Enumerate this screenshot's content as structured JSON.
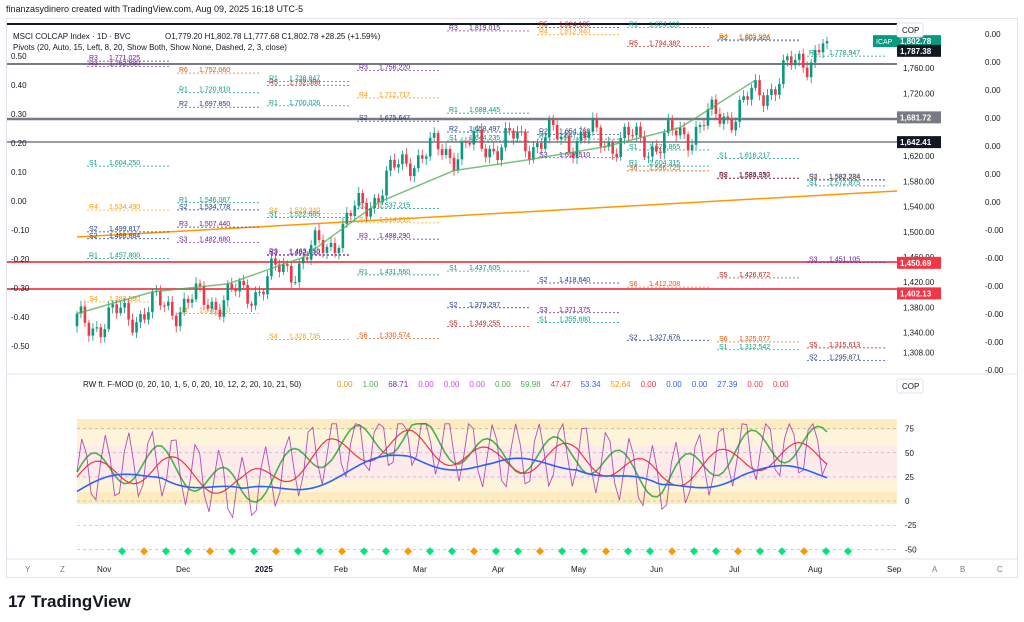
{
  "header": "finanzasydinero created with TradingView.com, Aug 09, 2025 16:18 UTC-5",
  "legend": {
    "symbol": "MSCI COLCAP Index · 1D · BVC",
    "ohlc": "O1,779.20  H1,802.78  L1,777.68  C1,802.78  +28.25 (+1.59%)",
    "pivots": "Pivots (20, Auto, 15, Left, 8, 20, Show Both, Show None, Dashed, 2, 3, close)"
  },
  "currency": "COP",
  "price_axis": {
    "ticks": [
      "1,760.00",
      "1,720.00",
      "1,680.00",
      "1,620.00",
      "1,580.00",
      "1,540.00",
      "1,500.00",
      "1,460.00",
      "1,420.00",
      "1,380.00",
      "1,340.00",
      "1,308.00"
    ],
    "badges": [
      {
        "label": "ICAP",
        "value": "1,802.78",
        "color": "#089981"
      },
      {
        "label": "",
        "value": "1,787.38",
        "color": "#131722"
      },
      {
        "label": "",
        "value": "1,681.72",
        "color": "#787b86"
      },
      {
        "label": "",
        "value": "1,642.41",
        "color": "#131722"
      },
      {
        "label": "",
        "value": "1,450.69",
        "color": "#f23645"
      },
      {
        "label": "",
        "value": "1,402.13",
        "color": "#f23645"
      }
    ]
  },
  "left_scale": [
    "0.50",
    "0.40",
    "0.30",
    "0.20",
    "0.10",
    "0.00",
    "-0.10",
    "-0.20",
    "-0.30",
    "-0.40",
    "-0.50"
  ],
  "right_scale": [
    "0.00",
    "0.00",
    "0.00",
    "0.00",
    "0.00",
    "0.00",
    "0.00",
    "-0.00",
    "-0.00",
    "-0.00",
    "-0.00",
    "-0.00",
    "-0.00"
  ],
  "time_axis": [
    "Nov",
    "Dec",
    "2025",
    "Feb",
    "Mar",
    "Apr",
    "May",
    "Jun",
    "Jul",
    "Aug",
    "Sep"
  ],
  "time_axis_letters": [
    "Y",
    "Z",
    "A",
    "B",
    "C"
  ],
  "pivot_labels": [
    {
      "t": "R3",
      "v": "1,771.025"
    },
    {
      "t": "R6",
      "v": "1,752.060"
    },
    {
      "t": "R5",
      "v": "1,732.388"
    },
    {
      "t": "R4",
      "v": "1,712.717"
    },
    {
      "t": "R2",
      "v": "1,658.497"
    },
    {
      "t": "R1",
      "v": "1,647.194"
    },
    {
      "t": "R1",
      "v": "1,604.315"
    },
    {
      "t": "R2",
      "v": "1,585.350"
    },
    {
      "t": "R4",
      "v": "1,583.320"
    },
    {
      "t": "R4",
      "v": "1,534.490"
    },
    {
      "t": "R3",
      "v": "1,507.440"
    },
    {
      "t": "R3",
      "v": "1,463.850"
    },
    {
      "t": "R1",
      "v": "1,431.560"
    },
    {
      "t": "S2",
      "v": "1,379.297"
    },
    {
      "t": "S1",
      "v": "1,355.680"
    },
    {
      "t": "S2",
      "v": "1,327.676"
    },
    {
      "t": "S1",
      "v": "1,312.542"
    },
    {
      "t": "S2",
      "v": "1,295.871"
    },
    {
      "t": "S4",
      "v": "1,388.580"
    },
    {
      "t": "S4",
      "v": "1,370.170"
    },
    {
      "t": "S4",
      "v": "1,328.735"
    },
    {
      "t": "S6",
      "v": "1,330.574"
    },
    {
      "t": "S5",
      "v": "1,349.255"
    },
    {
      "t": "S3",
      "v": "1,371.375"
    },
    {
      "t": "S6",
      "v": "1,412.208"
    },
    {
      "t": "S5",
      "v": "1,426.672"
    },
    {
      "t": "S3",
      "v": "1,451.105"
    },
    {
      "t": "S2",
      "v": "1,488.884"
    },
    {
      "t": "S2",
      "v": "1,534.778"
    },
    {
      "t": "S4",
      "v": "1,529.340"
    },
    {
      "t": "S4",
      "v": "1,514.210"
    },
    {
      "t": "R3",
      "v": "1,819.015"
    },
    {
      "t": "R4",
      "v": "1,812.940"
    },
    {
      "t": "R1",
      "v": "1,824.110"
    },
    {
      "t": "R2",
      "v": "1,803.326"
    },
    {
      "t": "R1",
      "v": "1,778.947"
    },
    {
      "t": "R3",
      "v": "1,762.580"
    },
    {
      "t": "R1",
      "v": "1,720.810"
    },
    {
      "t": "R1",
      "v": "1,700.026"
    },
    {
      "t": "S2",
      "v": "1,675.647"
    },
    {
      "t": "S1",
      "v": "1,644.235"
    },
    {
      "t": "S3",
      "v": "1,617.510"
    },
    {
      "t": "S6",
      "v": "1,596.725"
    },
    {
      "t": "S5",
      "v": "1,584.537"
    },
    {
      "t": "S2",
      "v": "1,582.284"
    },
    {
      "t": "S1",
      "v": "1,604.250"
    },
    {
      "t": "R2",
      "v": "1,697.850"
    },
    {
      "t": "R1",
      "v": "1,738.847"
    },
    {
      "t": "R3",
      "v": "1,756.220"
    },
    {
      "t": "R4",
      "v": "1,832.370"
    },
    {
      "t": "R5",
      "v": "1,824.185"
    },
    {
      "t": "R5",
      "v": "1,794.382"
    },
    {
      "t": "R4",
      "v": "1,805.604"
    },
    {
      "t": "S1",
      "v": "1,572.875"
    },
    {
      "t": "S2",
      "v": "1,499.817"
    },
    {
      "t": "S3",
      "v": "1,482.680"
    },
    {
      "t": "S3",
      "v": "1,462.610"
    },
    {
      "t": "R3",
      "v": "1,488.290"
    },
    {
      "t": "S1",
      "v": "1,437.605"
    },
    {
      "t": "S2",
      "v": "1,418.640"
    },
    {
      "t": "S4",
      "v": "1,288.360"
    },
    {
      "t": "S6",
      "v": "1,325.077"
    },
    {
      "t": "S5",
      "v": "1,315.613"
    },
    {
      "t": "R1",
      "v": "1,457.800"
    },
    {
      "t": "R1",
      "v": "1,546.067"
    },
    {
      "t": "S1",
      "v": "1,522.685"
    },
    {
      "t": "S1",
      "v": "1,537.215"
    },
    {
      "t": "R1",
      "v": "1,688.445"
    },
    {
      "t": "R2",
      "v": "1,654.768"
    },
    {
      "t": "S1",
      "v": "1,629.865"
    },
    {
      "t": "S1",
      "v": "1,616.217"
    }
  ],
  "indicator": {
    "title": "RW ft. F-MOD (0, 20, 10, 1, 5, 0, 20, 10, 12, 2, 20, 10, 21, 50)",
    "values": [
      {
        "v": "0.00",
        "c": "#d4a017"
      },
      {
        "v": "1.00",
        "c": "#4caf50"
      },
      {
        "v": "68.71",
        "c": "#8e24aa"
      },
      {
        "v": "0.00",
        "c": "#e040fb"
      },
      {
        "v": "0.00",
        "c": "#e040fb"
      },
      {
        "v": "0.00",
        "c": "#e040fb"
      },
      {
        "v": "0.00",
        "c": "#4caf50"
      },
      {
        "v": "59.98",
        "c": "#4caf50"
      },
      {
        "v": "47.47",
        "c": "#f23645"
      },
      {
        "v": "53.34",
        "c": "#2962ff"
      },
      {
        "v": "52.64",
        "c": "#ff9800"
      },
      {
        "v": "0.00",
        "c": "#f23645"
      },
      {
        "v": "0.00",
        "c": "#2962ff"
      },
      {
        "v": "0.00",
        "c": "#2962ff"
      },
      {
        "v": "27.39",
        "c": "#2962ff"
      },
      {
        "v": "0.00",
        "c": "#f23645"
      },
      {
        "v": "0.00",
        "c": "#f23645"
      }
    ],
    "currency": "COP",
    "ticks": [
      "75",
      "50",
      "25",
      "0",
      "-25",
      "-50"
    ]
  },
  "chart_data": {
    "type": "candlestick",
    "title": "MSCI COLCAP Index · 1D · BVC",
    "ylabel": "",
    "ylim": [
      1290,
      1830
    ],
    "x": [
      "Nov",
      "Dec",
      "2025",
      "Feb",
      "Mar",
      "Apr",
      "May",
      "Jun",
      "Jul",
      "Aug"
    ],
    "close_approx": [
      1350,
      1380,
      1400,
      1480,
      1620,
      1640,
      1650,
      1640,
      1700,
      1802.78
    ],
    "last_close": 1802.78,
    "indicator_series": {
      "ylim": [
        -60,
        85
      ],
      "green": [
        30,
        40,
        10,
        55,
        70,
        45,
        50,
        20,
        55,
        60
      ],
      "blue": [
        10,
        30,
        5,
        25,
        45,
        35,
        40,
        10,
        30,
        27.39
      ],
      "red": [
        25,
        35,
        15,
        50,
        60,
        40,
        47,
        25,
        45,
        47.47
      ]
    }
  },
  "footer": "TradingView"
}
